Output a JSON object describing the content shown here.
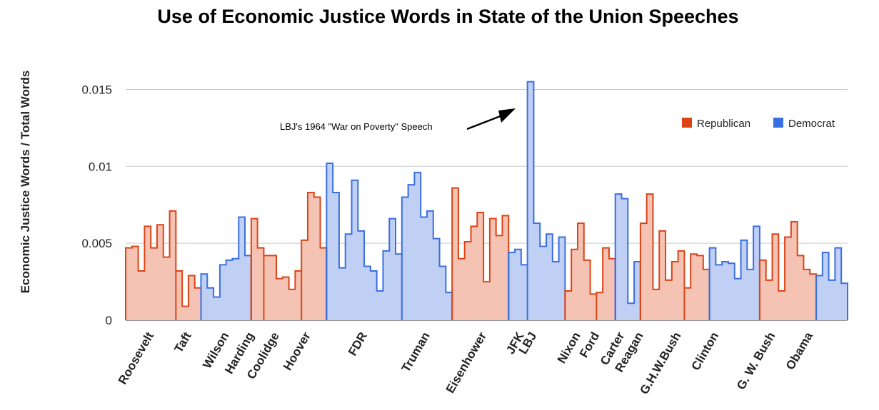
{
  "chart_data": {
    "type": "area",
    "title": "Use of Economic Justice Words in State of the Union Speeches",
    "ylabel": "Economic Justice Words / Total Words",
    "xlabel": "",
    "ylim": [
      0,
      0.0172
    ],
    "yticks": [
      {
        "value": 0,
        "label": "0"
      },
      {
        "value": 0.005,
        "label": "0.005"
      },
      {
        "value": 0.01,
        "label": "0.01"
      },
      {
        "value": 0.015,
        "label": "0.015"
      }
    ],
    "grid": true,
    "legend_position": "top-right",
    "parties": [
      {
        "key": "R",
        "name": "Republican",
        "line": "#dc4418",
        "fill": "#f4c3b3"
      },
      {
        "key": "D",
        "name": "Democrat",
        "line": "#3a6fe0",
        "fill": "#c0cff4"
      }
    ],
    "series": [
      {
        "president": "Roosevelt",
        "party": "R",
        "values": [
          0.0047,
          0.0048,
          0.0032,
          0.0061,
          0.0047,
          0.0062,
          0.0041,
          0.0071
        ]
      },
      {
        "president": "Taft",
        "party": "R",
        "values": [
          0.0032,
          0.0009,
          0.0029,
          0.0021
        ]
      },
      {
        "president": "Wilson",
        "party": "D",
        "values": [
          0.003,
          0.0021,
          0.0015,
          0.0036,
          0.0039,
          0.004,
          0.0067,
          0.0042
        ]
      },
      {
        "president": "Harding",
        "party": "R",
        "values": [
          0.0066,
          0.0047
        ]
      },
      {
        "president": "Coolidge",
        "party": "R",
        "values": [
          0.0042,
          0.0042,
          0.0027,
          0.0028,
          0.002,
          0.0032
        ]
      },
      {
        "president": "Hoover",
        "party": "R",
        "values": [
          0.0052,
          0.0083,
          0.008,
          0.0047
        ]
      },
      {
        "president": "FDR",
        "party": "D",
        "values": [
          0.0102,
          0.0083,
          0.0034,
          0.0056,
          0.0091,
          0.0058,
          0.0035,
          0.0032,
          0.0019,
          0.0045,
          0.0066,
          0.0043
        ]
      },
      {
        "president": "Truman",
        "party": "D",
        "values": [
          0.008,
          0.0088,
          0.0096,
          0.0067,
          0.0071,
          0.0053,
          0.0035,
          0.0018
        ]
      },
      {
        "president": "Eisenhower",
        "party": "R",
        "values": [
          0.0086,
          0.004,
          0.0051,
          0.0061,
          0.007,
          0.0025,
          0.0066,
          0.0055,
          0.0068
        ]
      },
      {
        "president": "JFK",
        "party": "D",
        "values": [
          0.0044,
          0.0046,
          0.0036
        ]
      },
      {
        "president": "LBJ",
        "party": "D",
        "values": [
          0.0155,
          0.0063,
          0.0048,
          0.0056,
          0.0038,
          0.0054
        ]
      },
      {
        "president": "Nixon",
        "party": "R",
        "values": [
          0.0019,
          0.0046,
          0.0063,
          0.0039,
          0.0017
        ]
      },
      {
        "president": "Ford",
        "party": "R",
        "values": [
          0.0018,
          0.0047,
          0.004
        ]
      },
      {
        "president": "Carter",
        "party": "D",
        "values": [
          0.0082,
          0.0079,
          0.0011,
          0.0038
        ]
      },
      {
        "president": "Reagan",
        "party": "R",
        "values": [
          0.0063,
          0.0082,
          0.002,
          0.0058,
          0.0026,
          0.0038,
          0.0045
        ]
      },
      {
        "president": "G.H.W.Bush",
        "party": "R",
        "values": [
          0.0021,
          0.0043,
          0.0042,
          0.0033
        ]
      },
      {
        "president": "Clinton",
        "party": "D",
        "values": [
          0.0047,
          0.0036,
          0.0038,
          0.0037,
          0.0027,
          0.0052,
          0.0033,
          0.0061
        ]
      },
      {
        "president": "G. W. Bush",
        "party": "R",
        "values": [
          0.0039,
          0.0026,
          0.0056,
          0.0019,
          0.0054,
          0.0064,
          0.0042,
          0.0033,
          0.003
        ]
      },
      {
        "president": "Obama",
        "party": "D",
        "values": [
          0.0029,
          0.0044,
          0.0026,
          0.0047,
          0.0024
        ]
      }
    ],
    "x_labels": [
      {
        "label": "Roosevelt",
        "index": 4
      },
      {
        "label": "Taft",
        "index": 10
      },
      {
        "label": "Wilson",
        "index": 16
      },
      {
        "label": "Harding",
        "index": 20
      },
      {
        "label": "Coolidge",
        "index": 24
      },
      {
        "label": "Hoover",
        "index": 29
      },
      {
        "label": "FDR",
        "index": 38
      },
      {
        "label": "Truman",
        "index": 48
      },
      {
        "label": "Eisenhower",
        "index": 57
      },
      {
        "label": "JFK",
        "index": 63
      },
      {
        "label": "LBJ",
        "index": 65
      },
      {
        "label": "Nixon",
        "index": 72
      },
      {
        "label": "Ford",
        "index": 75
      },
      {
        "label": "Carter",
        "index": 79
      },
      {
        "label": "Reagan",
        "index": 82
      },
      {
        "label": "G.H.W.Bush",
        "index": 88
      },
      {
        "label": "Clinton",
        "index": 94
      },
      {
        "label": "G. W. Bush",
        "index": 103
      },
      {
        "label": "Obama",
        "index": 109
      }
    ],
    "annotation": {
      "text": "LBJ's 1964 \"War on Poverty\" Speech",
      "target": {
        "president": "LBJ",
        "speech": 0
      }
    }
  }
}
